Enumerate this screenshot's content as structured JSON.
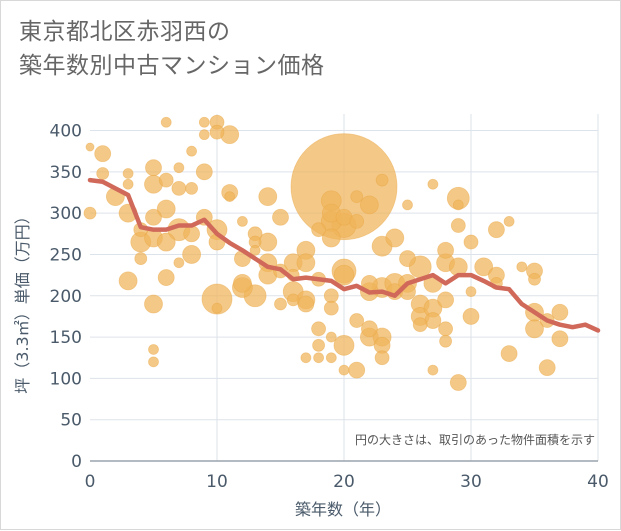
{
  "title_lines": [
    "東京都北区赤羽西の",
    "築年数別中古マンション価格"
  ],
  "chart_data": {
    "type": "scatter",
    "title": "東京都北区赤羽西の築年数別中古マンション価格",
    "xlabel": "築年数（年）",
    "ylabel": "坪（3.3㎡）単価（万円）",
    "xlim": [
      0,
      40
    ],
    "ylim": [
      0,
      420
    ],
    "x_ticks": [
      0,
      10,
      20,
      30,
      40
    ],
    "y_ticks": [
      0,
      50,
      100,
      150,
      200,
      250,
      300,
      350,
      400
    ],
    "grid": true,
    "note": "円の大きさは、取引のあった物件面積を示す",
    "bubble_color": "#f0b45a",
    "line_color": "#d0695a",
    "series": [
      {
        "type": "bubble",
        "points": [
          {
            "x": 0,
            "y": 380,
            "s": 4
          },
          {
            "x": 0,
            "y": 300,
            "s": 6
          },
          {
            "x": 1,
            "y": 372,
            "s": 8
          },
          {
            "x": 1,
            "y": 348,
            "s": 6
          },
          {
            "x": 2,
            "y": 320,
            "s": 9
          },
          {
            "x": 3,
            "y": 348,
            "s": 5
          },
          {
            "x": 3,
            "y": 335,
            "s": 5
          },
          {
            "x": 3,
            "y": 300,
            "s": 9
          },
          {
            "x": 3,
            "y": 218,
            "s": 9
          },
          {
            "x": 4,
            "y": 280,
            "s": 7
          },
          {
            "x": 4,
            "y": 265,
            "s": 10
          },
          {
            "x": 4,
            "y": 245,
            "s": 6
          },
          {
            "x": 5,
            "y": 355,
            "s": 8
          },
          {
            "x": 5,
            "y": 335,
            "s": 9
          },
          {
            "x": 5,
            "y": 295,
            "s": 8
          },
          {
            "x": 5,
            "y": 270,
            "s": 9
          },
          {
            "x": 5,
            "y": 190,
            "s": 9
          },
          {
            "x": 5,
            "y": 135,
            "s": 5
          },
          {
            "x": 5,
            "y": 120,
            "s": 5
          },
          {
            "x": 6,
            "y": 410,
            "s": 5
          },
          {
            "x": 6,
            "y": 340,
            "s": 7
          },
          {
            "x": 6,
            "y": 305,
            "s": 9
          },
          {
            "x": 6,
            "y": 265,
            "s": 9
          },
          {
            "x": 6,
            "y": 222,
            "s": 8
          },
          {
            "x": 7,
            "y": 355,
            "s": 5
          },
          {
            "x": 7,
            "y": 330,
            "s": 7
          },
          {
            "x": 7,
            "y": 280,
            "s": 11
          },
          {
            "x": 7,
            "y": 240,
            "s": 5
          },
          {
            "x": 8,
            "y": 375,
            "s": 5
          },
          {
            "x": 8,
            "y": 330,
            "s": 6
          },
          {
            "x": 8,
            "y": 275,
            "s": 8
          },
          {
            "x": 8,
            "y": 250,
            "s": 9
          },
          {
            "x": 9,
            "y": 410,
            "s": 5
          },
          {
            "x": 9,
            "y": 395,
            "s": 5
          },
          {
            "x": 9,
            "y": 350,
            "s": 8
          },
          {
            "x": 9,
            "y": 295,
            "s": 8
          },
          {
            "x": 10,
            "y": 410,
            "s": 7
          },
          {
            "x": 10,
            "y": 398,
            "s": 7
          },
          {
            "x": 10,
            "y": 280,
            "s": 10
          },
          {
            "x": 10,
            "y": 265,
            "s": 8
          },
          {
            "x": 10,
            "y": 196,
            "s": 15
          },
          {
            "x": 10,
            "y": 185,
            "s": 5
          },
          {
            "x": 11,
            "y": 395,
            "s": 9
          },
          {
            "x": 11,
            "y": 325,
            "s": 8
          },
          {
            "x": 11,
            "y": 320,
            "s": 5
          },
          {
            "x": 12,
            "y": 290,
            "s": 5
          },
          {
            "x": 12,
            "y": 245,
            "s": 8
          },
          {
            "x": 12,
            "y": 215,
            "s": 9
          },
          {
            "x": 12,
            "y": 210,
            "s": 10
          },
          {
            "x": 13,
            "y": 275,
            "s": 7
          },
          {
            "x": 13,
            "y": 265,
            "s": 6
          },
          {
            "x": 13,
            "y": 255,
            "s": 5
          },
          {
            "x": 13,
            "y": 200,
            "s": 11
          },
          {
            "x": 14,
            "y": 320,
            "s": 9
          },
          {
            "x": 14,
            "y": 265,
            "s": 9
          },
          {
            "x": 14,
            "y": 240,
            "s": 9
          },
          {
            "x": 14,
            "y": 225,
            "s": 9
          },
          {
            "x": 15,
            "y": 295,
            "s": 8
          },
          {
            "x": 15,
            "y": 230,
            "s": 7
          },
          {
            "x": 15,
            "y": 190,
            "s": 6
          },
          {
            "x": 16,
            "y": 240,
            "s": 9
          },
          {
            "x": 16,
            "y": 225,
            "s": 6
          },
          {
            "x": 16,
            "y": 205,
            "s": 10
          },
          {
            "x": 16,
            "y": 195,
            "s": 6
          },
          {
            "x": 17,
            "y": 255,
            "s": 9
          },
          {
            "x": 17,
            "y": 240,
            "s": 9
          },
          {
            "x": 17,
            "y": 195,
            "s": 9
          },
          {
            "x": 17,
            "y": 190,
            "s": 8
          },
          {
            "x": 17,
            "y": 125,
            "s": 5
          },
          {
            "x": 18,
            "y": 280,
            "s": 7
          },
          {
            "x": 18,
            "y": 220,
            "s": 7
          },
          {
            "x": 18,
            "y": 160,
            "s": 7
          },
          {
            "x": 18,
            "y": 140,
            "s": 6
          },
          {
            "x": 18,
            "y": 125,
            "s": 5
          },
          {
            "x": 19,
            "y": 315,
            "s": 10
          },
          {
            "x": 19,
            "y": 300,
            "s": 9
          },
          {
            "x": 19,
            "y": 290,
            "s": 10
          },
          {
            "x": 19,
            "y": 270,
            "s": 9
          },
          {
            "x": 19,
            "y": 200,
            "s": 7
          },
          {
            "x": 19,
            "y": 185,
            "s": 7
          },
          {
            "x": 19,
            "y": 150,
            "s": 5
          },
          {
            "x": 19,
            "y": 125,
            "s": 5
          },
          {
            "x": 20,
            "y": 332,
            "s": 53
          },
          {
            "x": 20,
            "y": 295,
            "s": 8
          },
          {
            "x": 20,
            "y": 285,
            "s": 12
          },
          {
            "x": 20,
            "y": 230,
            "s": 12
          },
          {
            "x": 20,
            "y": 225,
            "s": 10
          },
          {
            "x": 20,
            "y": 140,
            "s": 10
          },
          {
            "x": 20,
            "y": 110,
            "s": 5
          },
          {
            "x": 21,
            "y": 320,
            "s": 6
          },
          {
            "x": 21,
            "y": 290,
            "s": 7
          },
          {
            "x": 21,
            "y": 170,
            "s": 7
          },
          {
            "x": 21,
            "y": 110,
            "s": 8
          },
          {
            "x": 22,
            "y": 310,
            "s": 9
          },
          {
            "x": 22,
            "y": 215,
            "s": 8
          },
          {
            "x": 22,
            "y": 205,
            "s": 9
          },
          {
            "x": 22,
            "y": 160,
            "s": 8
          },
          {
            "x": 22,
            "y": 150,
            "s": 9
          },
          {
            "x": 23,
            "y": 340,
            "s": 6
          },
          {
            "x": 23,
            "y": 260,
            "s": 10
          },
          {
            "x": 23,
            "y": 210,
            "s": 10
          },
          {
            "x": 23,
            "y": 150,
            "s": 9
          },
          {
            "x": 23,
            "y": 140,
            "s": 8
          },
          {
            "x": 23,
            "y": 125,
            "s": 7
          },
          {
            "x": 24,
            "y": 270,
            "s": 9
          },
          {
            "x": 24,
            "y": 215,
            "s": 10
          },
          {
            "x": 24,
            "y": 205,
            "s": 8
          },
          {
            "x": 25,
            "y": 310,
            "s": 5
          },
          {
            "x": 25,
            "y": 245,
            "s": 8
          },
          {
            "x": 25,
            "y": 215,
            "s": 9
          },
          {
            "x": 25,
            "y": 205,
            "s": 8
          },
          {
            "x": 26,
            "y": 235,
            "s": 11
          },
          {
            "x": 26,
            "y": 190,
            "s": 9
          },
          {
            "x": 26,
            "y": 175,
            "s": 9
          },
          {
            "x": 26,
            "y": 165,
            "s": 7
          },
          {
            "x": 27,
            "y": 335,
            "s": 5
          },
          {
            "x": 27,
            "y": 215,
            "s": 9
          },
          {
            "x": 27,
            "y": 185,
            "s": 9
          },
          {
            "x": 27,
            "y": 170,
            "s": 8
          },
          {
            "x": 27,
            "y": 110,
            "s": 5
          },
          {
            "x": 28,
            "y": 255,
            "s": 8
          },
          {
            "x": 28,
            "y": 240,
            "s": 9
          },
          {
            "x": 28,
            "y": 195,
            "s": 8
          },
          {
            "x": 28,
            "y": 160,
            "s": 7
          },
          {
            "x": 28,
            "y": 145,
            "s": 6
          },
          {
            "x": 29,
            "y": 318,
            "s": 11
          },
          {
            "x": 29,
            "y": 310,
            "s": 5
          },
          {
            "x": 29,
            "y": 285,
            "s": 7
          },
          {
            "x": 29,
            "y": 235,
            "s": 9
          },
          {
            "x": 29,
            "y": 95,
            "s": 8
          },
          {
            "x": 30,
            "y": 265,
            "s": 7
          },
          {
            "x": 30,
            "y": 205,
            "s": 5
          },
          {
            "x": 30,
            "y": 175,
            "s": 8
          },
          {
            "x": 31,
            "y": 235,
            "s": 9
          },
          {
            "x": 32,
            "y": 280,
            "s": 8
          },
          {
            "x": 32,
            "y": 225,
            "s": 8
          },
          {
            "x": 32,
            "y": 215,
            "s": 6
          },
          {
            "x": 33,
            "y": 290,
            "s": 5
          },
          {
            "x": 33,
            "y": 130,
            "s": 8
          },
          {
            "x": 34,
            "y": 235,
            "s": 5
          },
          {
            "x": 35,
            "y": 230,
            "s": 8
          },
          {
            "x": 35,
            "y": 220,
            "s": 6
          },
          {
            "x": 35,
            "y": 180,
            "s": 9
          },
          {
            "x": 35,
            "y": 160,
            "s": 9
          },
          {
            "x": 36,
            "y": 170,
            "s": 7
          },
          {
            "x": 36,
            "y": 113,
            "s": 8
          },
          {
            "x": 37,
            "y": 180,
            "s": 8
          },
          {
            "x": 37,
            "y": 148,
            "s": 8
          }
        ]
      },
      {
        "type": "line",
        "x": [
          0,
          1,
          2,
          3,
          4,
          5,
          6,
          7,
          8,
          9,
          10,
          11,
          12,
          13,
          14,
          15,
          16,
          17,
          18,
          19,
          20,
          21,
          22,
          23,
          24,
          25,
          26,
          27,
          28,
          29,
          30,
          31,
          32,
          33,
          34,
          35,
          36,
          37,
          38,
          39,
          40
        ],
        "y": [
          340,
          338,
          330,
          322,
          283,
          280,
          280,
          285,
          285,
          292,
          275,
          264,
          255,
          245,
          235,
          232,
          220,
          222,
          220,
          218,
          208,
          212,
          204,
          205,
          200,
          215,
          220,
          225,
          215,
          225,
          225,
          218,
          210,
          208,
          190,
          180,
          170,
          165,
          162,
          165,
          158
        ]
      }
    ]
  }
}
